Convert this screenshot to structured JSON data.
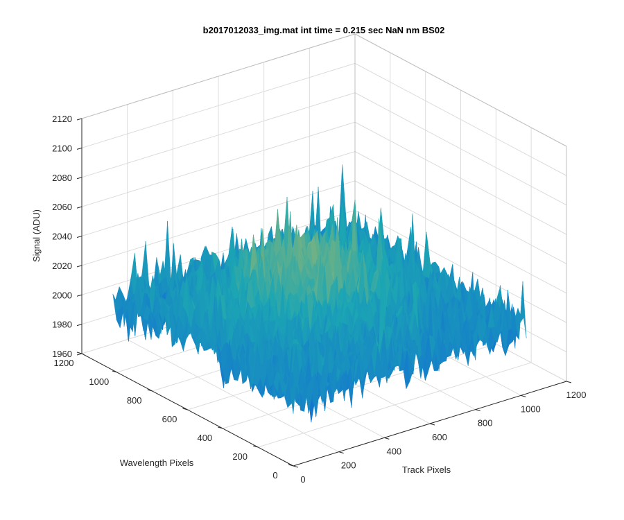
{
  "chart_data": {
    "type": "surface",
    "title": "b2017012033_img.mat int time = 0.215 sec  NaN nm BS02",
    "xlabel": "Track Pixels",
    "ylabel": "Wavelength Pixels",
    "zlabel": "Signal (ADU)",
    "xlim": [
      0,
      1200
    ],
    "ylim": [
      0,
      1200
    ],
    "zlim": [
      1960,
      2120
    ],
    "x_ticks": [
      "0",
      "200",
      "400",
      "600",
      "800",
      "1000",
      "1200"
    ],
    "y_ticks": [
      "0",
      "200",
      "400",
      "600",
      "800",
      "1000",
      "1200"
    ],
    "z_ticks": [
      "1960",
      "1980",
      "2000",
      "2020",
      "2040",
      "2060",
      "2080",
      "2100",
      "2120"
    ],
    "data_extent": {
      "x": [
        0,
        1024
      ],
      "y": [
        0,
        1024
      ]
    },
    "surface_mean": 2005,
    "surface_peak": 2040,
    "noise_range": [
      1960,
      2110
    ],
    "colormap": "parula",
    "grid": true,
    "colors": {
      "low": "#0f5cdd",
      "mid": "#1ca6b3",
      "high": "#d9c04a"
    }
  }
}
